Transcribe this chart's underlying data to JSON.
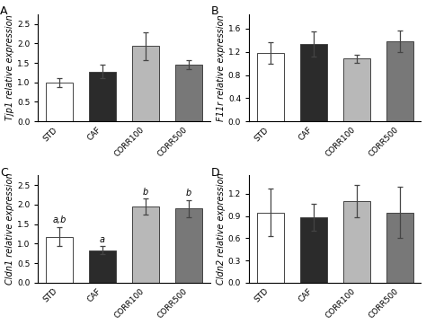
{
  "subplots": [
    {
      "label": "A",
      "ylabel": "Tjp1 relative expression",
      "ylim": [
        0,
        2.75
      ],
      "yticks": [
        0.0,
        0.5,
        1.0,
        1.5,
        2.0,
        2.5
      ],
      "values": [
        1.0,
        1.28,
        1.93,
        1.45
      ],
      "errors": [
        0.12,
        0.18,
        0.35,
        0.12
      ],
      "annotations": [
        "",
        "",
        "",
        ""
      ]
    },
    {
      "label": "B",
      "ylabel": "F11r relative expression",
      "ylim": [
        0,
        1.85
      ],
      "yticks": [
        0.0,
        0.4,
        0.8,
        1.2,
        1.6
      ],
      "values": [
        1.18,
        1.33,
        1.08,
        1.38
      ],
      "errors": [
        0.18,
        0.22,
        0.07,
        0.18
      ],
      "annotations": [
        "",
        "",
        "",
        ""
      ]
    },
    {
      "label": "C",
      "ylabel": "Cldn1 relative expression",
      "ylim": [
        0,
        2.75
      ],
      "yticks": [
        0.0,
        0.5,
        1.0,
        1.5,
        2.0,
        2.5
      ],
      "values": [
        1.18,
        0.83,
        1.95,
        1.9
      ],
      "errors": [
        0.25,
        0.1,
        0.2,
        0.22
      ],
      "annotations": [
        "a,b",
        "a",
        "b",
        "b"
      ]
    },
    {
      "label": "D",
      "ylabel": "Cldn2 relative expression",
      "ylim": [
        0,
        1.45
      ],
      "yticks": [
        0.0,
        0.3,
        0.6,
        0.9,
        1.2
      ],
      "values": [
        0.95,
        0.88,
        1.1,
        0.95
      ],
      "errors": [
        0.32,
        0.18,
        0.22,
        0.35
      ],
      "annotations": [
        "",
        "",
        "",
        ""
      ]
    }
  ],
  "categories": [
    "STD",
    "CAF",
    "CORR100",
    "CORR500"
  ],
  "bar_colors": [
    "white",
    "#2b2b2b",
    "#b8b8b8",
    "#787878"
  ],
  "bar_edge_color": "#444444",
  "error_color": "#444444",
  "background_color": "white",
  "label_fontsize": 7.0,
  "tick_fontsize": 6.5,
  "panel_fontsize": 9,
  "ann_fontsize": 7.0
}
